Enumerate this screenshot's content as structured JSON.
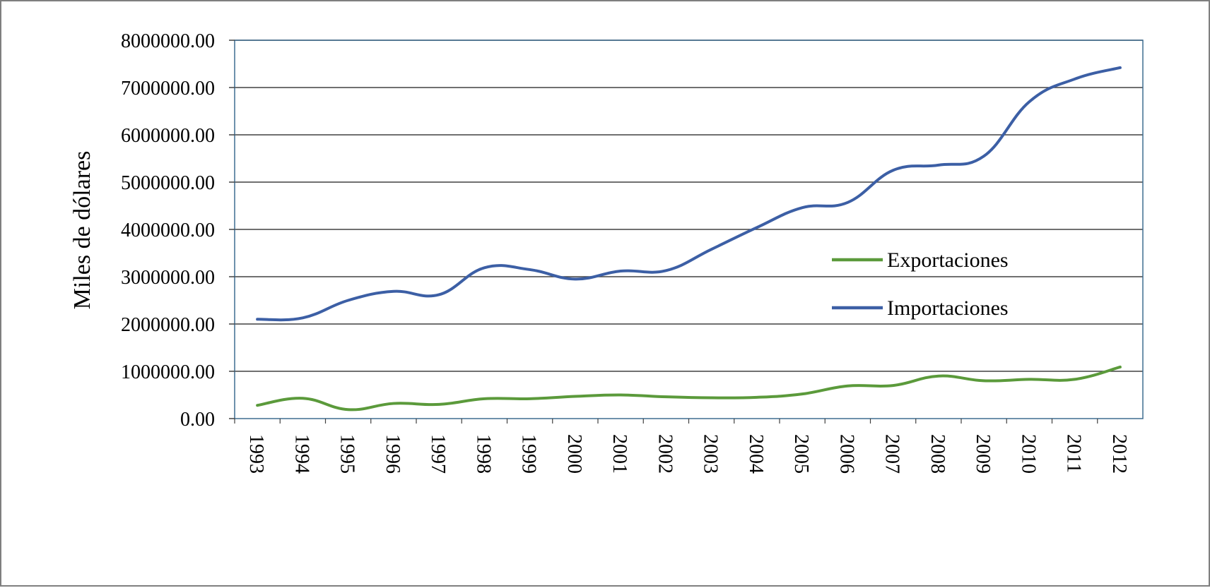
{
  "chart_data": {
    "type": "line",
    "title": "",
    "xlabel": "",
    "ylabel": "Miles de dólares",
    "ylim": [
      0,
      8000000
    ],
    "y_ticks": [
      "0.00",
      "1000000.00",
      "2000000.00",
      "3000000.00",
      "4000000.00",
      "5000000.00",
      "6000000.00",
      "7000000.00",
      "8000000.00"
    ],
    "categories": [
      "1993",
      "1994",
      "1995",
      "1996",
      "1997",
      "1998",
      "1999",
      "2000",
      "2001",
      "2002",
      "2003",
      "2004",
      "2005",
      "2006",
      "2007",
      "2008",
      "2009",
      "2010",
      "2011",
      "2012"
    ],
    "grid": true,
    "legend_position": "right",
    "series": [
      {
        "name": "Exportaciones",
        "color": "#5b9a3b",
        "values": [
          280000,
          430000,
          190000,
          320000,
          300000,
          420000,
          420000,
          470000,
          500000,
          460000,
          440000,
          450000,
          520000,
          690000,
          700000,
          900000,
          800000,
          830000,
          830000,
          1090000
        ]
      },
      {
        "name": "Importaciones",
        "color": "#3c5fa5",
        "values": [
          2100000,
          2130000,
          2500000,
          2690000,
          2620000,
          3190000,
          3150000,
          2950000,
          3120000,
          3130000,
          3580000,
          4040000,
          4460000,
          4570000,
          5250000,
          5360000,
          5550000,
          6700000,
          7180000,
          7420000
        ]
      }
    ]
  }
}
